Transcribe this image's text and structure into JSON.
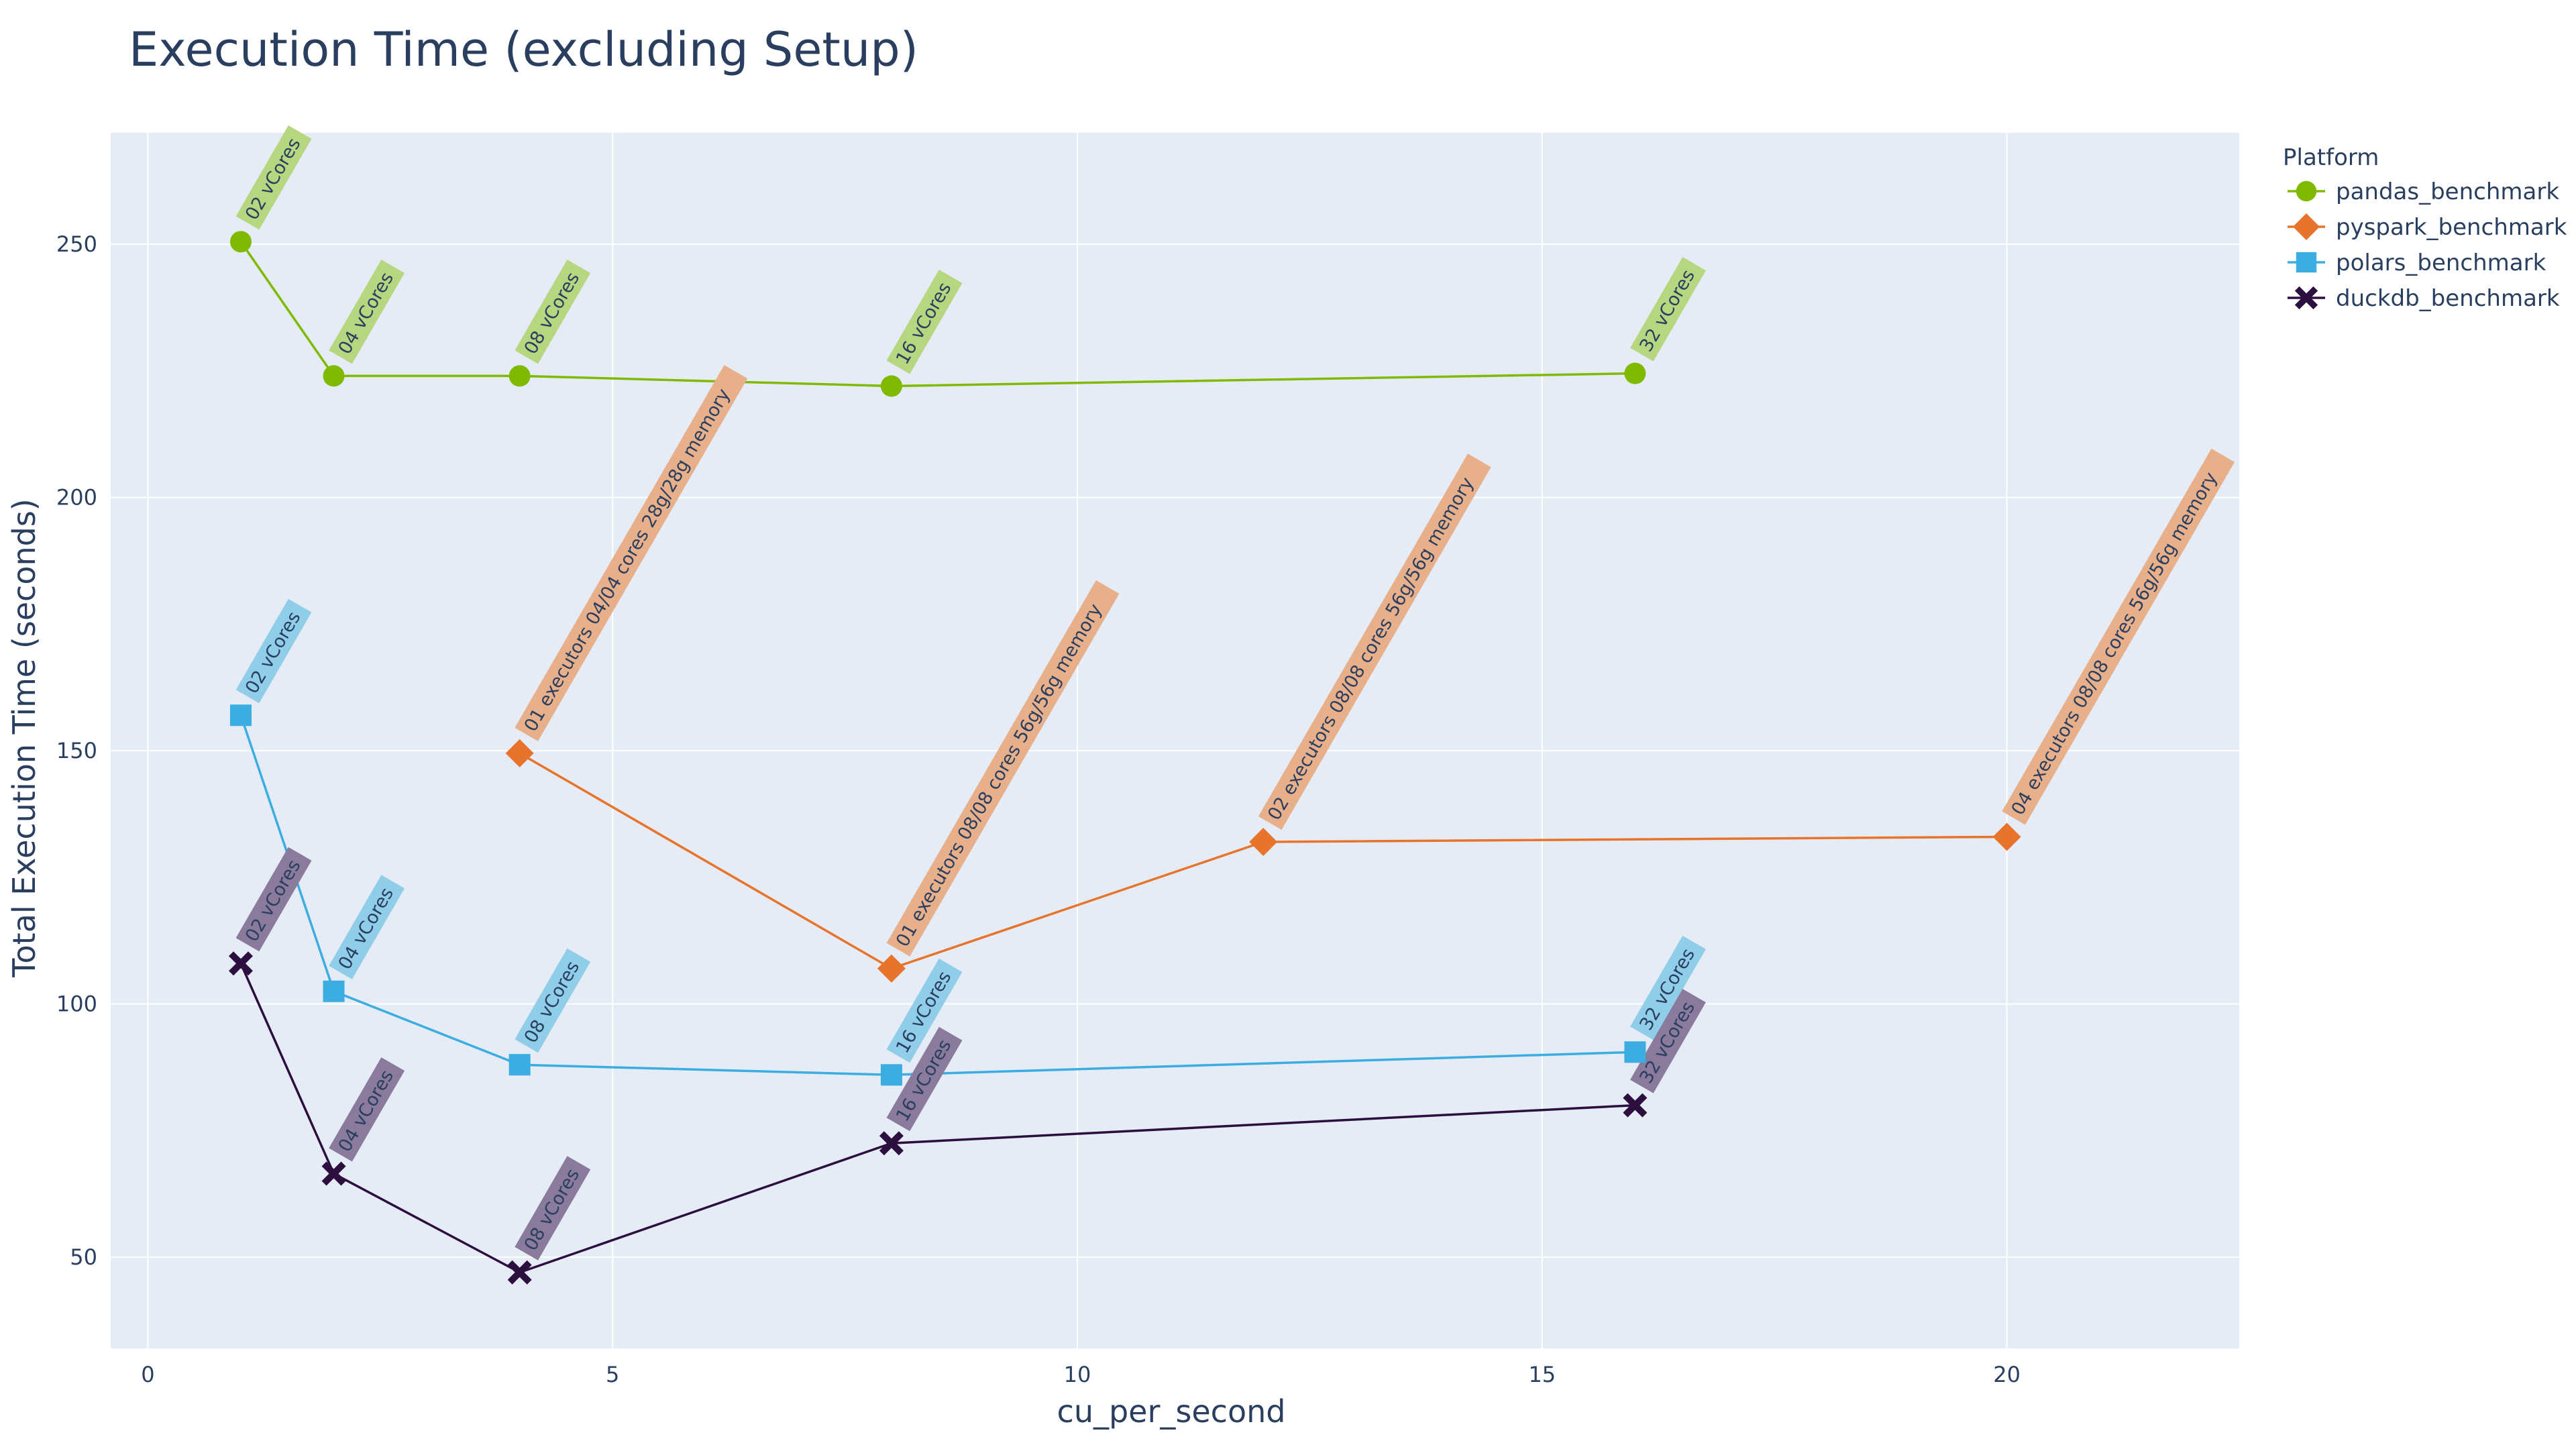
{
  "chart_data": {
    "type": "line",
    "title": "Execution Time (excluding Setup)",
    "xlabel": "cu_per_second",
    "ylabel": "Total Execution Time (seconds)",
    "xlim": [
      -0.4,
      22.5
    ],
    "ylim": [
      32,
      272
    ],
    "x_ticks": [
      0,
      5,
      10,
      15,
      20
    ],
    "y_ticks": [
      50,
      100,
      150,
      200,
      250
    ],
    "grid": true,
    "legend_title": "Platform",
    "legend_position": "top-right",
    "series": [
      {
        "name": "pandas_benchmark",
        "color": "#7fba00",
        "label_bg": "#b6d77f",
        "marker": "circle",
        "points": [
          {
            "x": 1,
            "y": 250.5,
            "label": "02 vCores"
          },
          {
            "x": 2,
            "y": 224.0,
            "label": "04 vCores"
          },
          {
            "x": 4,
            "y": 224.0,
            "label": "08 vCores"
          },
          {
            "x": 8,
            "y": 222.0,
            "label": "16 vCores"
          },
          {
            "x": 16,
            "y": 224.5,
            "label": "32 vCores"
          }
        ]
      },
      {
        "name": "pyspark_benchmark",
        "color": "#e8732a",
        "label_bg": "#e8b08a",
        "marker": "diamond",
        "points": [
          {
            "x": 4,
            "y": 149.5,
            "label": "01 executors 04/04 cores 28g/28g memory"
          },
          {
            "x": 8,
            "y": 107.0,
            "label": "01 executors 08/08 cores 56g/56g memory"
          },
          {
            "x": 12,
            "y": 132.0,
            "label": "02 executors 08/08 cores 56g/56g memory"
          },
          {
            "x": 20,
            "y": 133.0,
            "label": "04 executors 08/08 cores 56g/56g memory"
          }
        ]
      },
      {
        "name": "polars_benchmark",
        "color": "#3bade0",
        "label_bg": "#8fcde9",
        "marker": "square",
        "points": [
          {
            "x": 1,
            "y": 157.0,
            "label": "02 vCores"
          },
          {
            "x": 2,
            "y": 102.5,
            "label": "04 vCores"
          },
          {
            "x": 4,
            "y": 88.0,
            "label": "08 vCores"
          },
          {
            "x": 8,
            "y": 86.0,
            "label": "16 vCores"
          },
          {
            "x": 16,
            "y": 90.5,
            "label": "32 vCores"
          }
        ]
      },
      {
        "name": "duckdb_benchmark",
        "color": "#2d0f3f",
        "label_bg": "#8a7a9c",
        "marker": "x",
        "points": [
          {
            "x": 1,
            "y": 108.0,
            "label": "02 vCores"
          },
          {
            "x": 2,
            "y": 66.5,
            "label": "04 vCores"
          },
          {
            "x": 4,
            "y": 47.0,
            "label": "08 vCores"
          },
          {
            "x": 8,
            "y": 72.5,
            "label": "16 vCores"
          },
          {
            "x": 16,
            "y": 80.0,
            "label": "32 vCores"
          }
        ]
      }
    ]
  }
}
